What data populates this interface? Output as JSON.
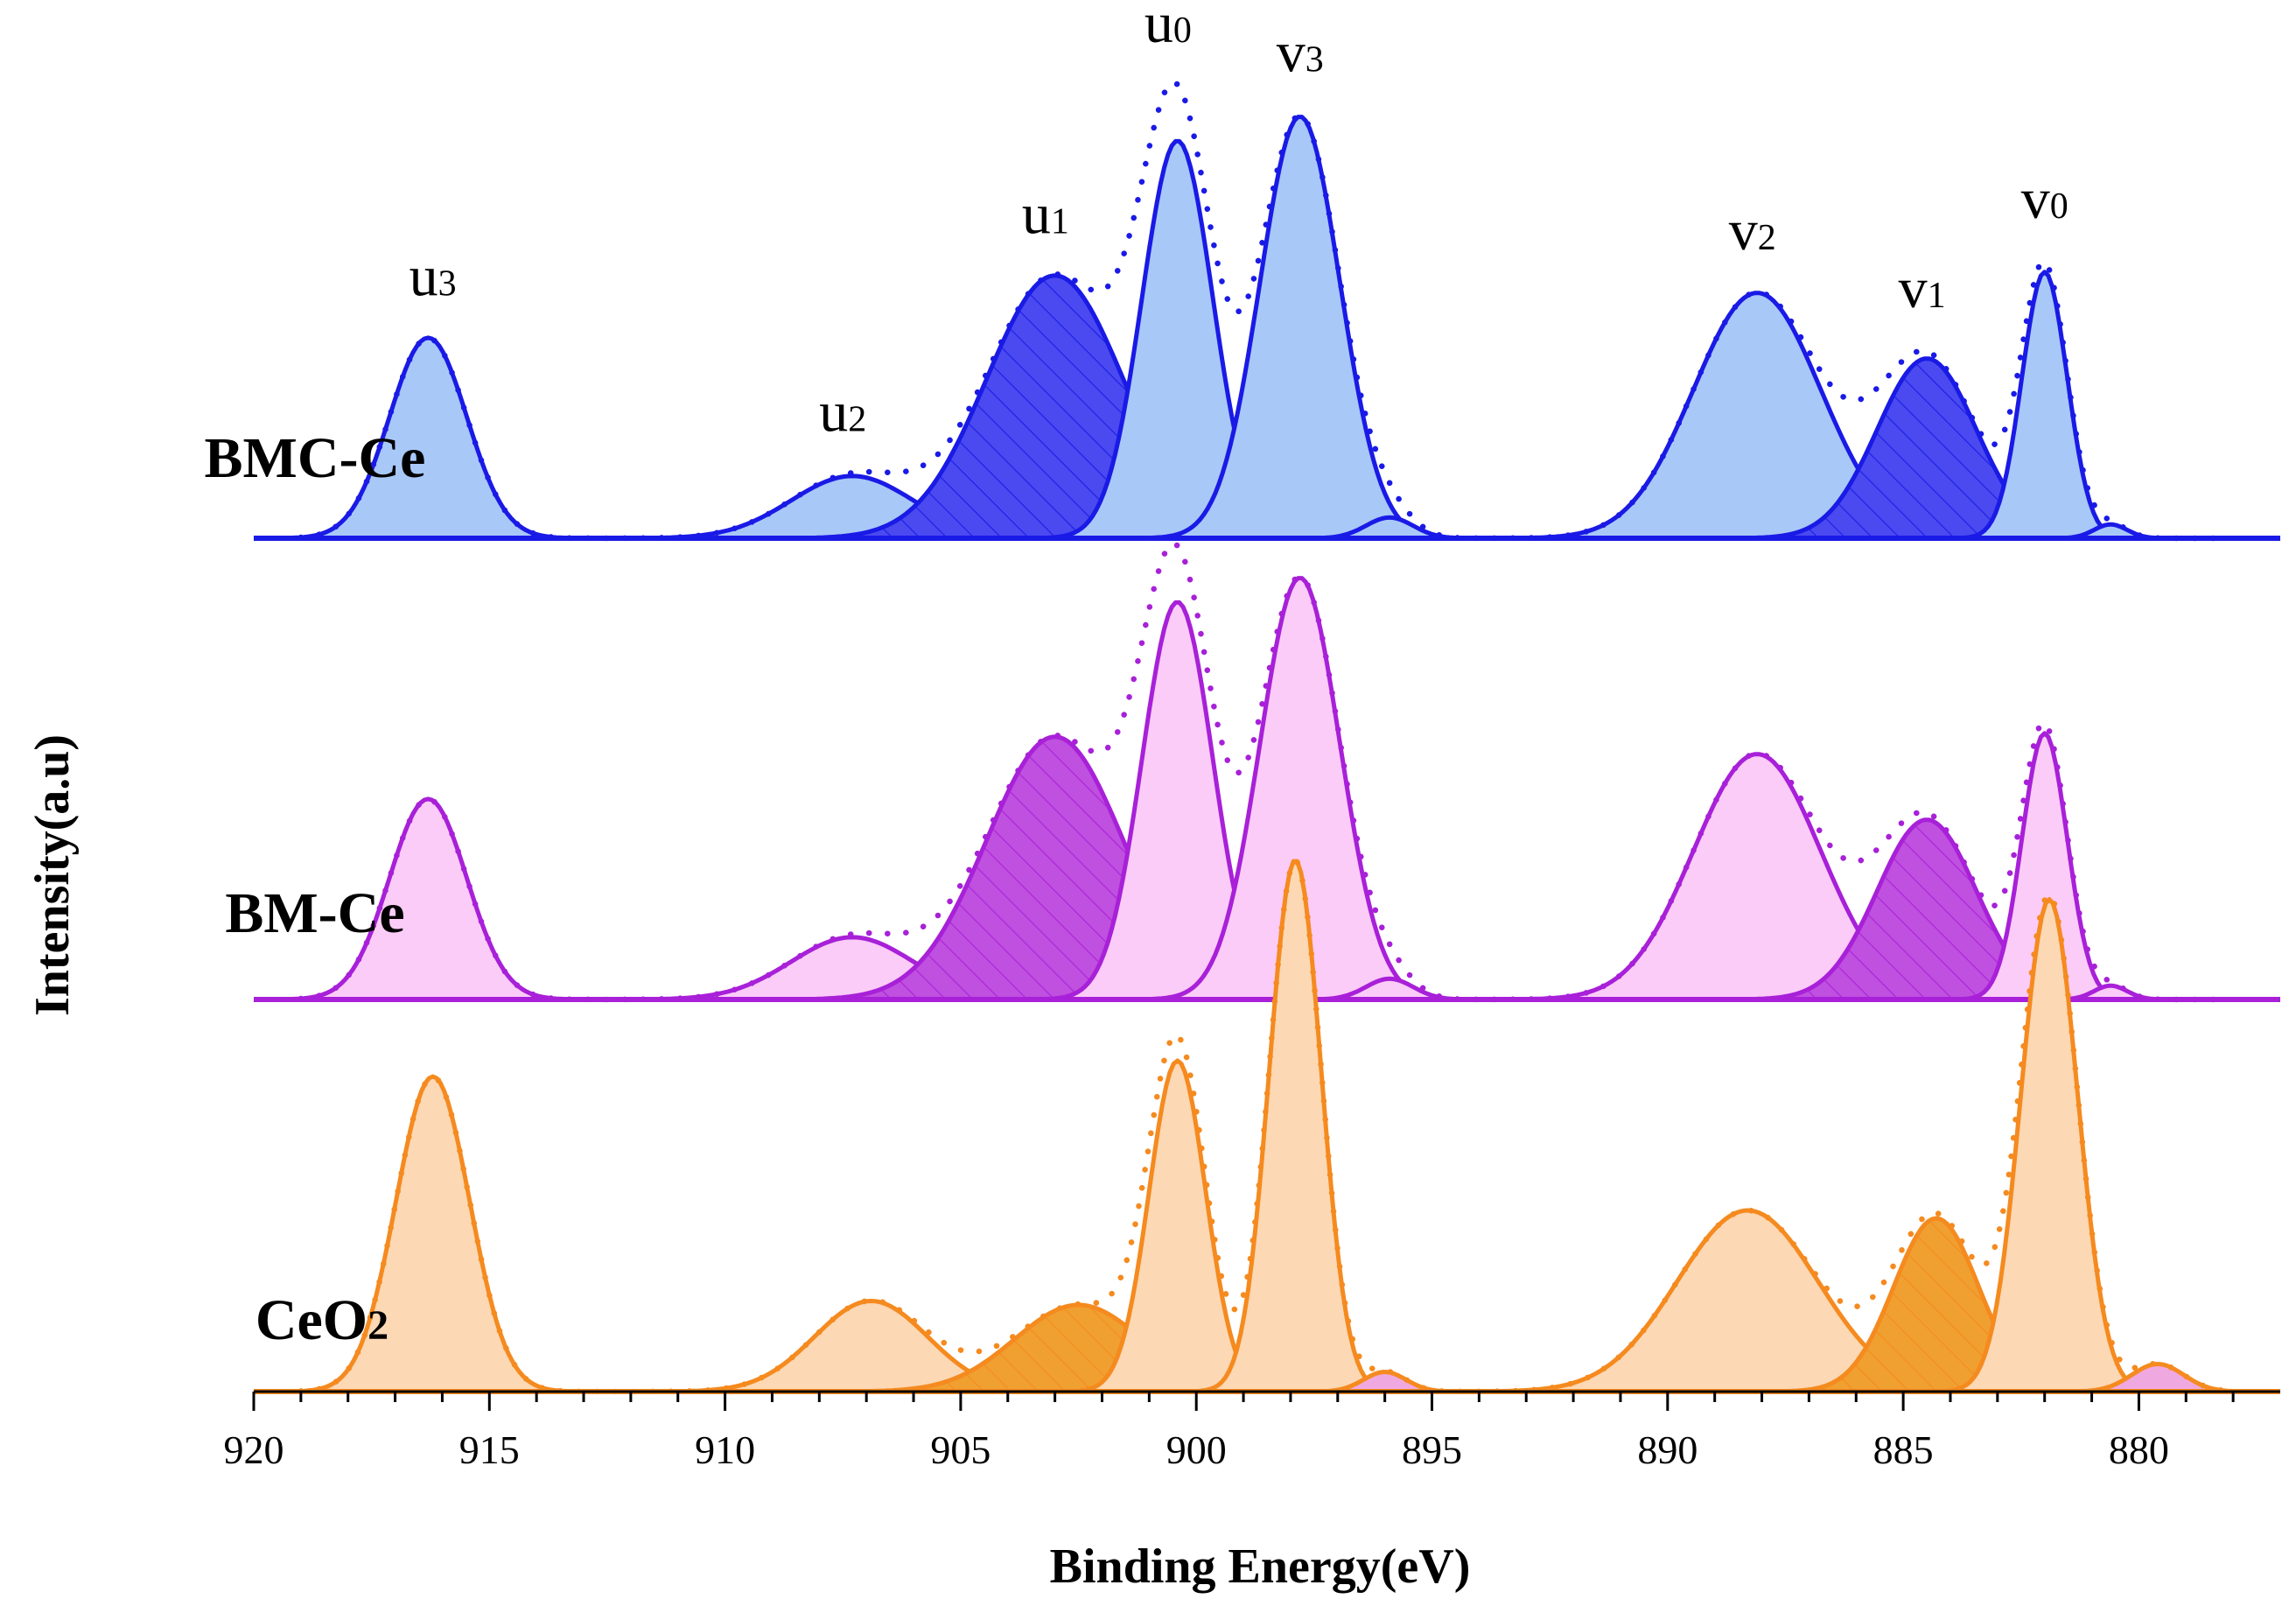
{
  "chart_data": {
    "type": "area",
    "title": "",
    "xlabel": "Binding Energy(eV)",
    "ylabel": "Intensity(a.u)",
    "xlim": [
      920,
      877
    ],
    "x_reversed": true,
    "x_ticks": [
      920,
      915,
      910,
      905,
      900,
      895,
      890,
      885,
      880
    ],
    "peak_labels": [
      {
        "text": "u",
        "sub": "3",
        "x": 916.2
      },
      {
        "text": "u",
        "sub": "2",
        "x": 907.5
      },
      {
        "text": "u",
        "sub": "1",
        "x": 903.2
      },
      {
        "text": "u",
        "sub": "0",
        "x": 900.6
      },
      {
        "text": "v",
        "sub": "3",
        "x": 897.8
      },
      {
        "text": "v",
        "sub": "2",
        "x": 888.2
      },
      {
        "text": "v",
        "sub": "1",
        "x": 884.6
      },
      {
        "text": "v",
        "sub": "0",
        "x": 882.0
      }
    ],
    "panels": [
      {
        "label": "BMC-Ce",
        "colors": {
          "line": "#1a1ae6",
          "fill": "#a8c8f8",
          "hatch": "#4a4af0"
        },
        "peaks": [
          {
            "center": 916.3,
            "height": 0.58,
            "sigma": 0.82
          },
          {
            "center": 907.3,
            "height": 0.18,
            "sigma": 1.3
          },
          {
            "center": 903.0,
            "height": 0.76,
            "sigma": 1.45,
            "hatched": true
          },
          {
            "center": 900.4,
            "height": 1.15,
            "sigma": 0.75
          },
          {
            "center": 897.8,
            "height": 1.22,
            "sigma": 0.85
          },
          {
            "center": 895.9,
            "height": 0.06,
            "sigma": 0.5
          },
          {
            "center": 888.1,
            "height": 0.71,
            "sigma": 1.35
          },
          {
            "center": 884.5,
            "height": 0.52,
            "sigma": 1.05,
            "hatched": true
          },
          {
            "center": 882.0,
            "height": 0.77,
            "sigma": 0.48
          },
          {
            "center": 880.6,
            "height": 0.04,
            "sigma": 0.35
          }
        ]
      },
      {
        "label": "BM-Ce",
        "colors": {
          "line": "#a820d8",
          "fill": "#fcccf8",
          "hatch": "#c050e0"
        },
        "peaks": [
          {
            "center": 916.3,
            "height": 0.58,
            "sigma": 0.82
          },
          {
            "center": 907.3,
            "height": 0.18,
            "sigma": 1.3
          },
          {
            "center": 903.0,
            "height": 0.76,
            "sigma": 1.45,
            "hatched": true
          },
          {
            "center": 900.4,
            "height": 1.15,
            "sigma": 0.75
          },
          {
            "center": 897.8,
            "height": 1.22,
            "sigma": 0.85
          },
          {
            "center": 895.9,
            "height": 0.06,
            "sigma": 0.5
          },
          {
            "center": 888.1,
            "height": 0.71,
            "sigma": 1.35
          },
          {
            "center": 884.5,
            "height": 0.52,
            "sigma": 1.05,
            "hatched": true
          },
          {
            "center": 882.0,
            "height": 0.77,
            "sigma": 0.48
          },
          {
            "center": 880.6,
            "height": 0.04,
            "sigma": 0.35
          }
        ]
      },
      {
        "label": "CeO",
        "label_sub": "2",
        "colors": {
          "line": "#f58a1f",
          "fill": "#fcd8b4",
          "hatch": "#f0a030",
          "minor": "#f0a8e0"
        },
        "peaks": [
          {
            "center": 916.2,
            "height": 0.8,
            "sigma": 0.78
          },
          {
            "center": 906.9,
            "height": 0.23,
            "sigma": 1.2
          },
          {
            "center": 902.5,
            "height": 0.22,
            "sigma": 1.35,
            "hatched": true
          },
          {
            "center": 900.4,
            "height": 0.84,
            "sigma": 0.6
          },
          {
            "center": 897.9,
            "height": 1.35,
            "sigma": 0.55
          },
          {
            "center": 896.0,
            "height": 0.05,
            "sigma": 0.45,
            "minor": true
          },
          {
            "center": 888.3,
            "height": 0.46,
            "sigma": 1.5
          },
          {
            "center": 884.3,
            "height": 0.44,
            "sigma": 0.9,
            "hatched": true
          },
          {
            "center": 881.9,
            "height": 1.25,
            "sigma": 0.6
          },
          {
            "center": 879.6,
            "height": 0.07,
            "sigma": 0.55,
            "minor": true
          }
        ]
      }
    ]
  }
}
